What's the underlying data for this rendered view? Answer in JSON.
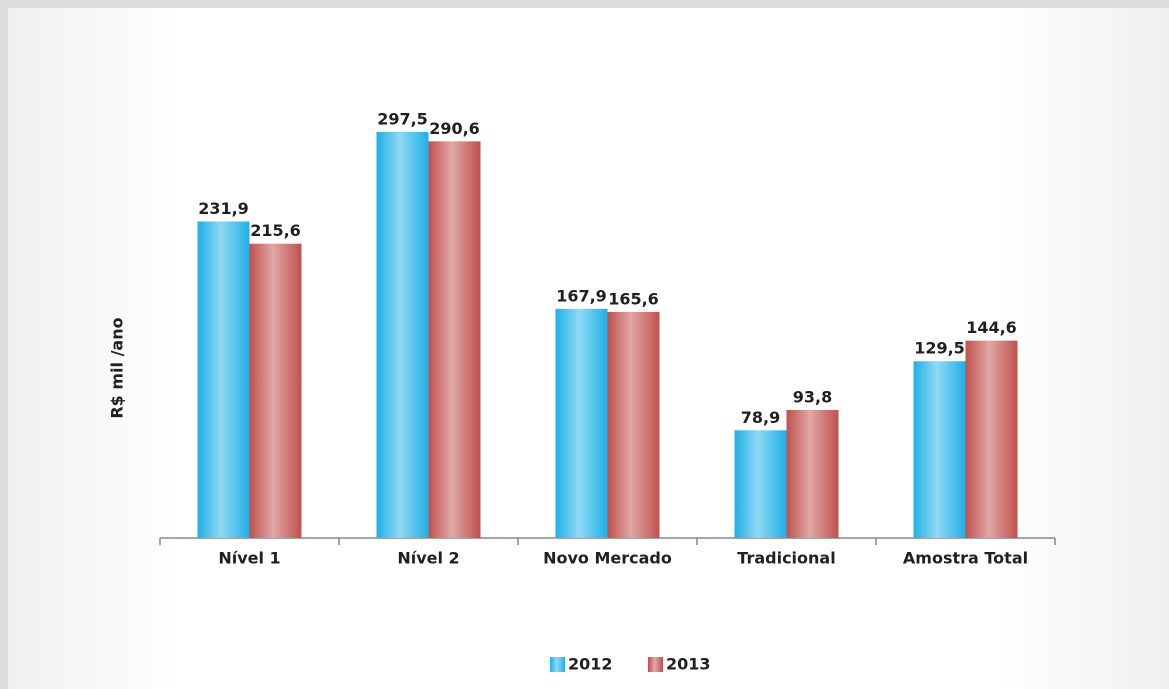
{
  "chart_data": {
    "type": "bar",
    "y_label": "R$ mil /ano",
    "categories": [
      "Nível 1",
      "Nível 2",
      "Novo Mercado",
      "Tradicional",
      "Amostra Total"
    ],
    "series": [
      {
        "name": "2012",
        "color": "#1fb0e6",
        "values": [
          231.9,
          297.5,
          167.9,
          78.9,
          129.5
        ],
        "value_labels": [
          "231,9",
          "297,5",
          "167,9",
          "78,9",
          "129,5"
        ]
      },
      {
        "name": "2013",
        "color": "#c0504d",
        "values": [
          215.6,
          290.6,
          165.6,
          93.8,
          144.6
        ],
        "value_labels": [
          "215,6",
          "290,6",
          "165,6",
          "93,8",
          "144,6"
        ]
      }
    ],
    "ylim": [
      0,
      300
    ]
  }
}
